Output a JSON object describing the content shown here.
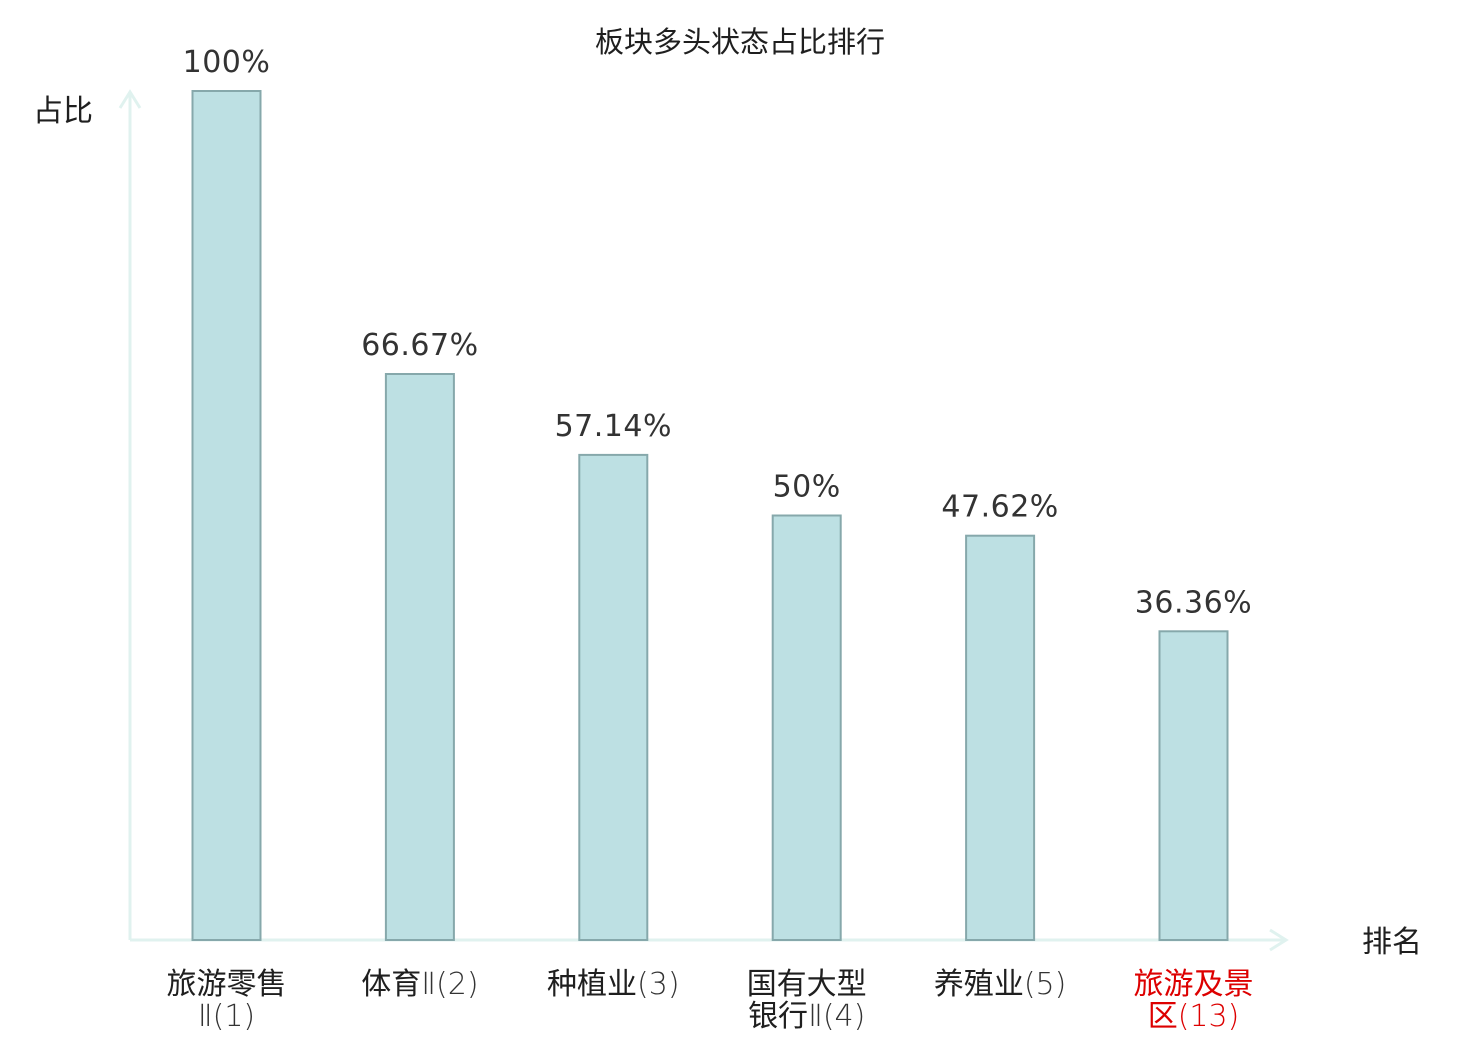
{
  "chart_data": {
    "type": "bar",
    "title": "板块多头状态占比排行",
    "ylabel": "占比",
    "xlabel": "排名",
    "ylim": [
      0,
      100
    ],
    "grid": false,
    "categories": [
      {
        "lines": [
          {
            "name": "旅游零售",
            "rank": ""
          },
          {
            "name": "",
            "rank": "Ⅱ(1)"
          }
        ],
        "highlight": false
      },
      {
        "lines": [
          {
            "name": "体育",
            "rank": "Ⅱ(2)"
          }
        ],
        "highlight": false
      },
      {
        "lines": [
          {
            "name": "种植业",
            "rank": "(3)"
          }
        ],
        "highlight": false
      },
      {
        "lines": [
          {
            "name": "国有大型",
            "rank": ""
          },
          {
            "name": "银行",
            "rank": "Ⅱ(4)"
          }
        ],
        "highlight": false
      },
      {
        "lines": [
          {
            "name": "养殖业",
            "rank": "(5)"
          }
        ],
        "highlight": false
      },
      {
        "lines": [
          {
            "name": "旅游及景",
            "rank": ""
          },
          {
            "name": "区",
            "rank": "(13)"
          }
        ],
        "highlight": true
      }
    ],
    "values": [
      100,
      66.67,
      57.14,
      50,
      47.62,
      36.36
    ],
    "value_labels": [
      "100%",
      "66.67%",
      "57.14%",
      "50%",
      "47.62%",
      "36.36%"
    ],
    "colors": {
      "bar_fill": "#bde0e3",
      "bar_stroke": "#86a8ab",
      "axis": "#e0f2ef",
      "label_default": "#1f1f1f",
      "rank_default": "#333333",
      "label_highlight": "#dd0000"
    }
  }
}
